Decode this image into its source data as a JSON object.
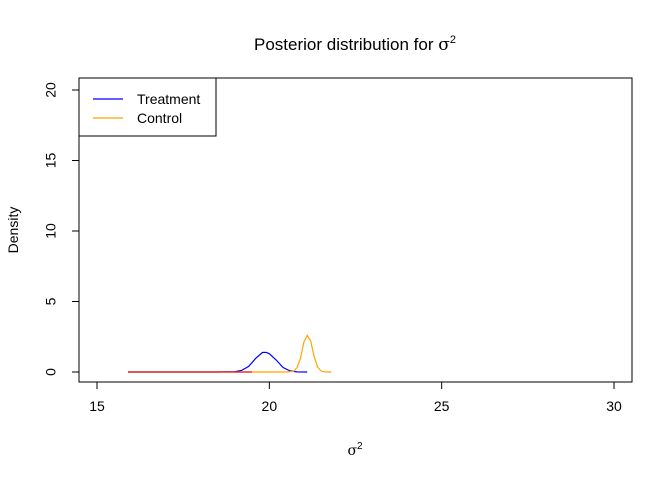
{
  "chart_data": {
    "type": "line",
    "title_prefix": "Posterior distribution for ",
    "title_symbol": "σ",
    "title_sup": "2",
    "xlabel_symbol": "σ",
    "xlabel_sup": "2",
    "ylabel": "Density",
    "xlim": [
      15,
      30
    ],
    "ylim": [
      0,
      20
    ],
    "x_ticks": [
      15,
      20,
      25,
      30
    ],
    "x_tick_labels": [
      "15",
      "20",
      "25",
      "30"
    ],
    "y_ticks": [
      0,
      5,
      10,
      15,
      20
    ],
    "y_tick_labels": [
      "0",
      "5",
      "10",
      "15",
      "20"
    ],
    "legend_position": "top-left",
    "series": [
      {
        "name": "Treatment",
        "color": "#0000ff",
        "x": [
          15.9,
          18.5,
          19.0,
          19.2,
          19.4,
          19.6,
          19.8,
          19.9,
          20.0,
          20.2,
          20.4,
          20.6,
          20.8,
          21.1
        ],
        "y": [
          0.0,
          0.0,
          0.02,
          0.12,
          0.4,
          0.95,
          1.38,
          1.4,
          1.3,
          0.85,
          0.32,
          0.08,
          0.01,
          0.0
        ]
      },
      {
        "name": "Control",
        "color": "#ffa500",
        "x": [
          15.9,
          20.5,
          20.7,
          20.8,
          20.9,
          21.0,
          21.1,
          21.2,
          21.3,
          21.4,
          21.5,
          21.6,
          21.8
        ],
        "y": [
          0.0,
          0.0,
          0.05,
          0.3,
          0.95,
          2.1,
          2.6,
          2.2,
          1.1,
          0.35,
          0.08,
          0.01,
          0.0
        ]
      },
      {
        "name": "",
        "color": "#e41a1c",
        "x": [
          15.9,
          19.5
        ],
        "y": [
          0.0,
          0.0
        ]
      }
    ]
  }
}
